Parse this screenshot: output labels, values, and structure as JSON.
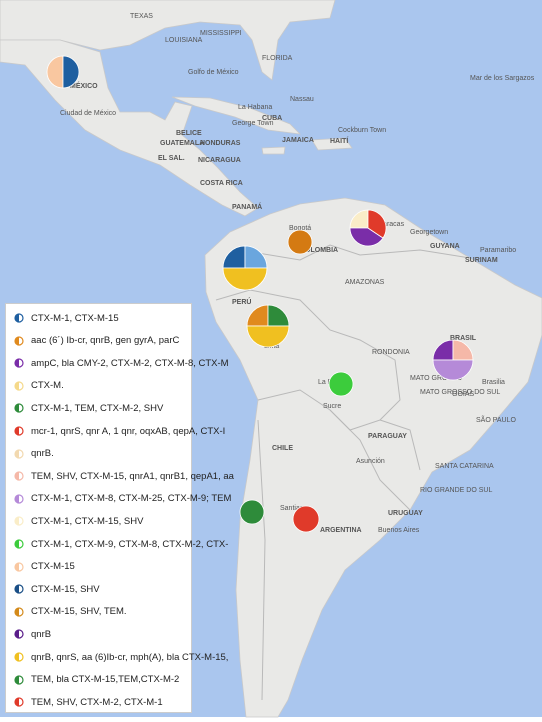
{
  "map_labels": [
    "TEXAS",
    "MISSISSIPPI",
    "LOUISIANA",
    "FLORIDA",
    "Golfo de México",
    "MÉXICO",
    "Ciudad de México",
    "Mar de los Sargazos",
    "La Habana",
    "CUBA",
    "Nassau",
    "BELICE",
    "GUATEMALA",
    "HONDURAS",
    "EL SAL.",
    "NICARAGUA",
    "COSTA RICA",
    "PANAMÁ",
    "JAMAICA",
    "HAITÍ",
    "George Town",
    "Cockburn Town",
    "Caracas",
    "COLOMBIA",
    "Bogotá",
    "GUYANA",
    "SURINAM",
    "Georgetown",
    "Paramaribo",
    "AMAZONAS",
    "BRASIL",
    "Brasilia",
    "RONDONIA",
    "MATO GROSSO",
    "MATO GROSSO DO SUL",
    "GOIÁS",
    "SÃO PAULO",
    "Lima",
    "La Paz",
    "Sucre",
    "PARAGUAY",
    "Asunción",
    "SANTA CATARINA",
    "RIO GRANDE DO SUL",
    "CHILE",
    "Santiago",
    "ARGENTINA",
    "URUGUAY",
    "Buenos Aires",
    "PERÚ"
  ],
  "legend": [
    {
      "label": "CTX-M-1, CTX-M-15",
      "color": "#1f5fa0"
    },
    {
      "label": "aac (6´) Ib-cr,  qnrB,  gen gyrA,  parC",
      "color": "#e08a1e"
    },
    {
      "label": "ampC, bla CMY-2, CTX-M-2, CTX-M-8,  CTX-M",
      "color": "#7a2da8"
    },
    {
      "label": "CTX-M.",
      "color": "#f5d98a"
    },
    {
      "label": "CTX-M-1, TEM, CTX-M-2,  SHV",
      "color": "#2e8b3a"
    },
    {
      "label": "mcr-1, qnrS, qnr A, 1 qnr, oqxAB,  qepA,  CTX-I",
      "color": "#e03a2a"
    },
    {
      "label": "qnrB.",
      "color": "#f2d9b0"
    },
    {
      "label": "TEM, SHV, CTX-M-15, qnrA1, qnrB1, qepA1, aa",
      "color": "#f5b8a8"
    },
    {
      "label": "CTX-M-1,  CTX-M-8,  CTX-M-25, CTX-M-9; TEM",
      "color": "#b58ad8"
    },
    {
      "label": "CTX-M-1, CTX-M-15, SHV",
      "color": "#faedc8"
    },
    {
      "label": "CTX-M-1, CTX-M-9, CTX-M-8, CTX-M-2,  CTX-",
      "color": "#3ccc3c"
    },
    {
      "label": "CTX-M-15",
      "color": "#f9c7a0"
    },
    {
      "label": "CTX-M-15, SHV",
      "color": "#1a4f86"
    },
    {
      "label": "CTX-M-15, SHV, TEM.",
      "color": "#d48a1a"
    },
    {
      "label": "qnrB",
      "color": "#5a1d8a"
    },
    {
      "label": "qnrB, qnrS, aa (6)Ib-cr, mph(A), bla CTX-M-15,",
      "color": "#f0c020"
    },
    {
      "label": "TEM, bla CTX-M-15,TEM,CTX-M-2",
      "color": "#2e8b3a"
    },
    {
      "label": "TEM, SHV, CTX-M-2,  CTX-M-1",
      "color": "#e03a2a"
    }
  ]
}
